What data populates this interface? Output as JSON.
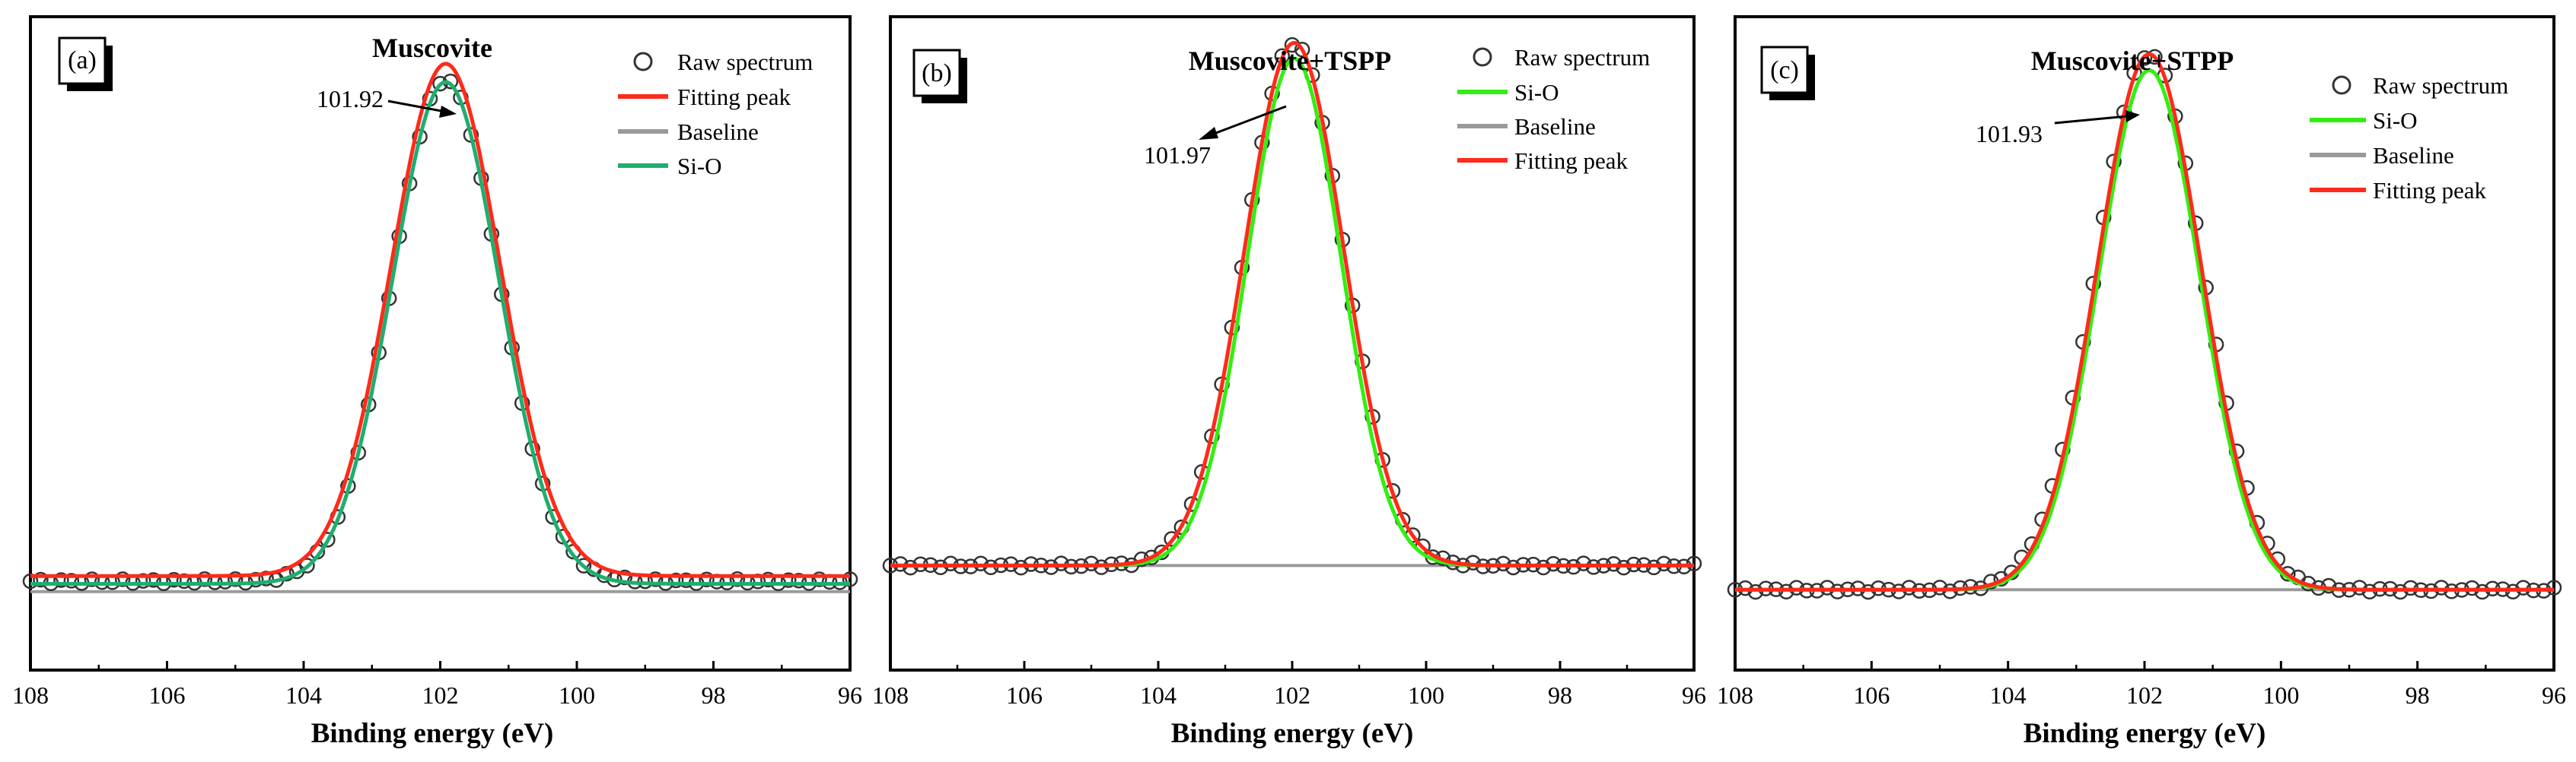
{
  "figure": {
    "x_axis_label": "Binding energy (eV)",
    "colors": {
      "raw": "#333333",
      "baseline": "#9a9a9a",
      "red": "#ff2a1a",
      "green_a": "#1fae6e",
      "green": "#33ee11"
    }
  },
  "chart_data": [
    {
      "type": "line",
      "panel_label": "(a)",
      "title": "Muscovite",
      "xlabel": "Binding energy (eV)",
      "ylabel": "",
      "xlim": [
        108,
        96
      ],
      "ylim": [
        -0.15,
        1.1
      ],
      "x_ticks": [
        108,
        106,
        104,
        102,
        100,
        98,
        96
      ],
      "x_tick_labels": [
        "108",
        "106",
        "104",
        "102",
        "100",
        "98",
        "96"
      ],
      "peak_annotation": {
        "label": "101.92",
        "x": 101.92
      },
      "legend": [
        {
          "name": "Raw spectrum",
          "kind": "circle",
          "color": "#333333"
        },
        {
          "name": "Fitting peak",
          "kind": "line",
          "color": "#ff2a1a"
        },
        {
          "name": "Baseline",
          "kind": "line",
          "color": "#9a9a9a"
        },
        {
          "name": "Si-O",
          "kind": "line",
          "color": "#1fae6e"
        }
      ],
      "series": [
        {
          "name": "Raw spectrum",
          "kind": "scatter",
          "center": 101.92,
          "height": 0.96,
          "sigma": 0.78,
          "baseline": 0.02,
          "x_range": [
            108,
            96
          ],
          "step": 0.15
        },
        {
          "name": "Fitting peak",
          "kind": "gaussian",
          "center": 101.92,
          "height": 0.98,
          "sigma": 0.8,
          "baseline": 0.03,
          "color": "#ff2a1a"
        },
        {
          "name": "Baseline",
          "kind": "flat",
          "level": 0.0,
          "color": "#9a9a9a"
        },
        {
          "name": "Si-O",
          "kind": "gaussian",
          "center": 101.92,
          "height": 0.96,
          "sigma": 0.78,
          "baseline": 0.015,
          "color": "#1fae6e"
        }
      ]
    },
    {
      "type": "line",
      "panel_label": "(b)",
      "title": "Muscovite+TSPP",
      "xlabel": "Binding energy (eV)",
      "ylabel": "",
      "xlim": [
        108,
        96
      ],
      "ylim": [
        -0.2,
        1.05
      ],
      "x_ticks": [
        108,
        106,
        104,
        102,
        100,
        98,
        96
      ],
      "x_tick_labels": [
        "108",
        "106",
        "104",
        "102",
        "100",
        "98",
        "96"
      ],
      "peak_annotation": {
        "label": "101.97",
        "x": 101.97
      },
      "legend": [
        {
          "name": "Raw spectrum",
          "kind": "circle",
          "color": "#333333"
        },
        {
          "name": "Si-O",
          "kind": "line",
          "color": "#33ee11"
        },
        {
          "name": "Baseline",
          "kind": "line",
          "color": "#9a9a9a"
        },
        {
          "name": "Fitting peak",
          "kind": "line",
          "color": "#ff2a1a"
        }
      ],
      "series": [
        {
          "name": "Raw spectrum",
          "kind": "scatter",
          "center": 101.97,
          "height": 1.0,
          "sigma": 0.74,
          "baseline": 0.0,
          "x_range": [
            108,
            96
          ],
          "step": 0.15
        },
        {
          "name": "Si-O",
          "kind": "gaussian",
          "center": 101.97,
          "height": 0.97,
          "sigma": 0.7,
          "baseline": 0.0,
          "color": "#33ee11"
        },
        {
          "name": "Baseline",
          "kind": "flat",
          "level": 0.0,
          "color": "#9a9a9a"
        },
        {
          "name": "Fitting peak",
          "kind": "gaussian",
          "center": 101.97,
          "height": 1.0,
          "sigma": 0.74,
          "baseline": 0.0,
          "color": "#ff2a1a"
        }
      ]
    },
    {
      "type": "line",
      "panel_label": "(c)",
      "title": "Muscovite+STPP",
      "xlabel": "Binding energy (eV)",
      "ylabel": "",
      "xlim": [
        108,
        96
      ],
      "ylim": [
        -0.15,
        1.07
      ],
      "x_ticks": [
        108,
        106,
        104,
        102,
        100,
        98,
        96
      ],
      "x_tick_labels": [
        "108",
        "106",
        "104",
        "102",
        "100",
        "98",
        "96"
      ],
      "peak_annotation": {
        "label": "101.93",
        "x": 101.93
      },
      "legend": [
        {
          "name": "Raw spectrum",
          "kind": "circle",
          "color": "#333333"
        },
        {
          "name": "Si-O",
          "kind": "line",
          "color": "#33ee11"
        },
        {
          "name": "Baseline",
          "kind": "line",
          "color": "#9a9a9a"
        },
        {
          "name": "Fitting peak",
          "kind": "line",
          "color": "#ff2a1a"
        }
      ],
      "series": [
        {
          "name": "Raw spectrum",
          "kind": "scatter",
          "center": 101.93,
          "height": 1.0,
          "sigma": 0.78,
          "baseline": 0.0,
          "x_range": [
            108,
            96
          ],
          "step": 0.15
        },
        {
          "name": "Si-O",
          "kind": "gaussian",
          "center": 101.93,
          "height": 0.97,
          "sigma": 0.74,
          "baseline": 0.0,
          "color": "#33ee11"
        },
        {
          "name": "Baseline",
          "kind": "flat",
          "level": 0.0,
          "color": "#9a9a9a"
        },
        {
          "name": "Fitting peak",
          "kind": "gaussian",
          "center": 101.93,
          "height": 1.0,
          "sigma": 0.76,
          "baseline": 0.0,
          "color": "#ff2a1a"
        }
      ]
    }
  ]
}
